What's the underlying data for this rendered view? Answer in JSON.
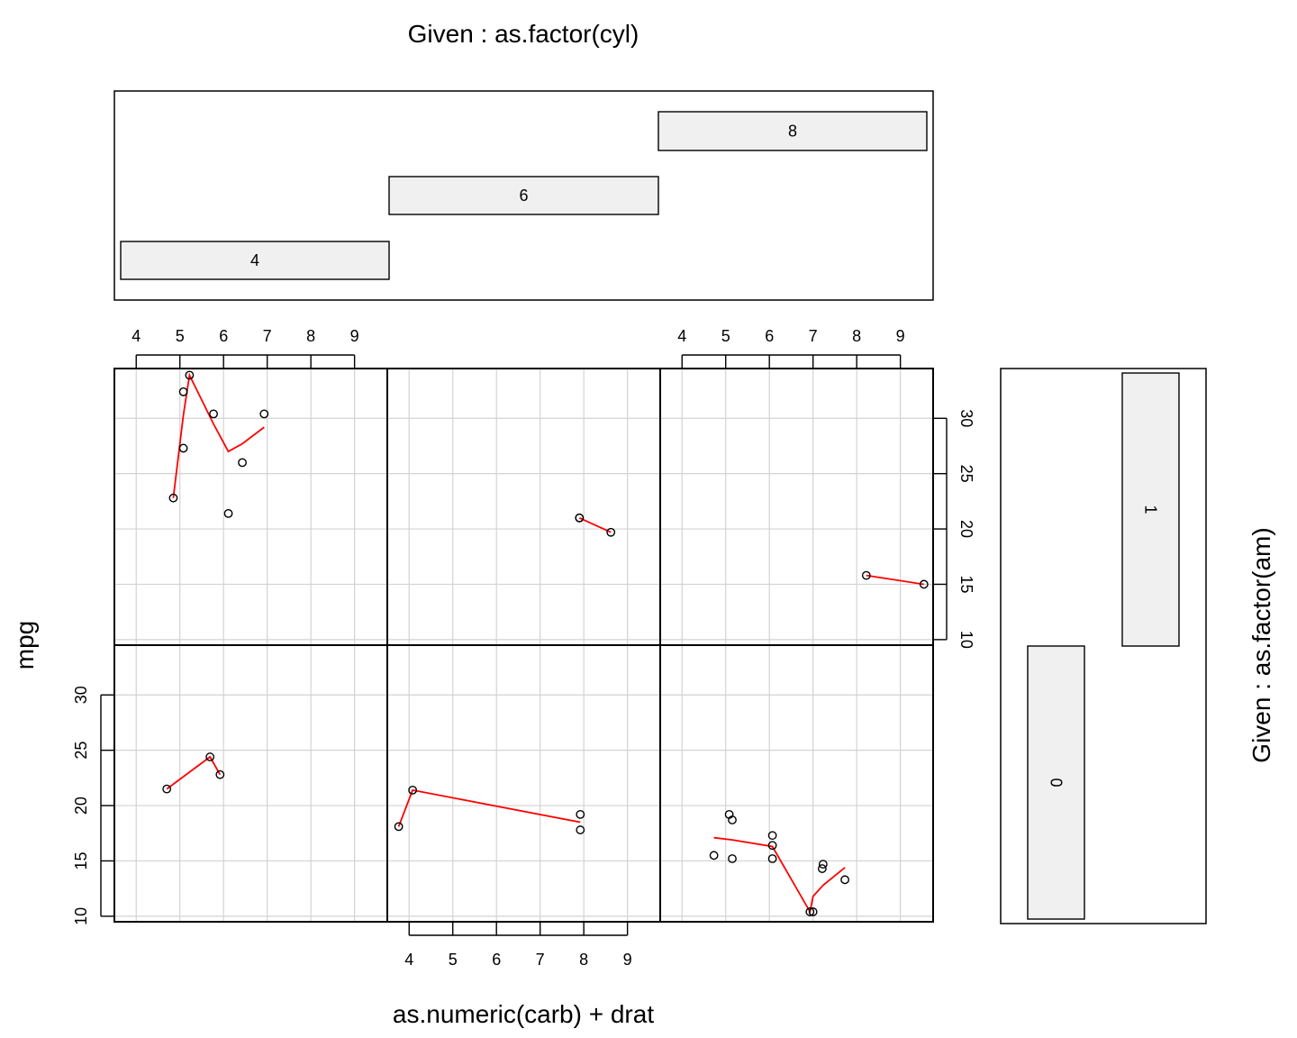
{
  "chart_data": {
    "type": "scatter",
    "title": "Given : as.factor(cyl)",
    "xlabel": "as.numeric(carb) + drat",
    "ylabel": "mpg",
    "side_label": "Given : as.factor(am)",
    "xlim": [
      3.5,
      9.75
    ],
    "ylim": [
      9.5,
      34.5
    ],
    "x_ticks": [
      "4",
      "5",
      "6",
      "7",
      "8",
      "9"
    ],
    "y_ticks": [
      "10",
      "15",
      "20",
      "25",
      "30"
    ],
    "grid": true,
    "cyl_levels": [
      "4",
      "6",
      "8"
    ],
    "am_levels": [
      "0",
      "1"
    ],
    "point_color": "#000000",
    "smooth_color": "#ff0000",
    "grid_color": "#d3d3d3",
    "bar_fill": "#f0f0f0",
    "panels": [
      {
        "cyl": "4",
        "am": "0",
        "points": [
          [
            4.7,
            21.5
          ],
          [
            5.69,
            24.4
          ],
          [
            5.92,
            22.8
          ]
        ],
        "smooth": [
          [
            4.7,
            21.5
          ],
          [
            5.69,
            24.4
          ],
          [
            5.92,
            22.8
          ]
        ]
      },
      {
        "cyl": "6",
        "am": "0",
        "points": [
          [
            3.76,
            18.1
          ],
          [
            4.08,
            21.4
          ],
          [
            7.92,
            19.2
          ],
          [
            7.92,
            17.8
          ]
        ],
        "smooth": [
          [
            3.76,
            18.1
          ],
          [
            4.08,
            21.4
          ],
          [
            7.92,
            18.5
          ]
        ]
      },
      {
        "cyl": "8",
        "am": "0",
        "points": [
          [
            4.73,
            15.5
          ],
          [
            5.08,
            19.2
          ],
          [
            5.15,
            18.7
          ],
          [
            5.15,
            15.2
          ],
          [
            6.07,
            17.3
          ],
          [
            6.07,
            16.4
          ],
          [
            6.07,
            15.2
          ],
          [
            6.93,
            10.4
          ],
          [
            7.0,
            10.4
          ],
          [
            7.21,
            14.3
          ],
          [
            7.23,
            14.7
          ],
          [
            7.73,
            13.3
          ]
        ],
        "smooth": [
          [
            4.73,
            17.1
          ],
          [
            5.15,
            16.9
          ],
          [
            6.07,
            16.3
          ],
          [
            6.93,
            10.4
          ],
          [
            7.0,
            11.8
          ],
          [
            7.23,
            12.8
          ],
          [
            7.73,
            14.4
          ]
        ]
      },
      {
        "cyl": "4",
        "am": "1",
        "points": [
          [
            4.85,
            22.8
          ],
          [
            5.08,
            32.4
          ],
          [
            5.08,
            27.3
          ],
          [
            5.22,
            33.9
          ],
          [
            5.77,
            30.4
          ],
          [
            6.11,
            21.4
          ],
          [
            6.43,
            26.0
          ],
          [
            6.93,
            30.4
          ]
        ],
        "smooth": [
          [
            4.85,
            22.8
          ],
          [
            5.08,
            30.3
          ],
          [
            5.22,
            33.9
          ],
          [
            5.77,
            29.5
          ],
          [
            6.11,
            27.0
          ],
          [
            6.43,
            27.7
          ],
          [
            6.93,
            29.2
          ]
        ]
      },
      {
        "cyl": "6",
        "am": "1",
        "points": [
          [
            7.9,
            21.0
          ],
          [
            7.9,
            21.0
          ],
          [
            8.62,
            19.7
          ]
        ],
        "smooth": [
          [
            7.9,
            21.0
          ],
          [
            8.62,
            19.7
          ]
        ]
      },
      {
        "cyl": "8",
        "am": "1",
        "points": [
          [
            8.22,
            15.8
          ],
          [
            9.54,
            15.0
          ]
        ],
        "smooth": [
          [
            8.22,
            15.8
          ],
          [
            9.54,
            15.0
          ]
        ]
      }
    ]
  }
}
